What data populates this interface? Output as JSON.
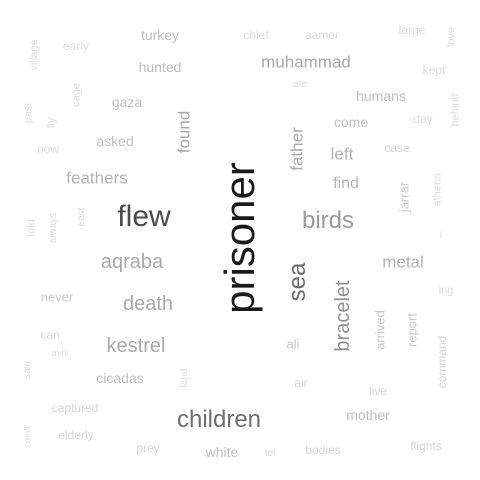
{
  "words": [
    {
      "id": "prisoner",
      "text": "prisoner",
      "color": "#1a1a1a"
    },
    {
      "id": "flew",
      "text": "flew",
      "color": "#4a4a4a"
    },
    {
      "id": "children",
      "text": "children",
      "color": "#6e6e6e"
    },
    {
      "id": "birds",
      "text": "birds",
      "color": "#9a9a9a"
    },
    {
      "id": "sea",
      "text": "sea",
      "color": "#6a6a6a"
    },
    {
      "id": "bracelet",
      "text": "bracelet",
      "color": "#909090"
    },
    {
      "id": "aqraba",
      "text": "aqraba",
      "color": "#a8a8a8"
    },
    {
      "id": "death",
      "text": "death",
      "color": "#a8a8a8"
    },
    {
      "id": "kestrel",
      "text": "kestrel",
      "color": "#a8a8a8"
    },
    {
      "id": "muhammad",
      "text": "muhammad",
      "color": "#a8a8a8"
    },
    {
      "id": "father",
      "text": "father",
      "color": "#a8a8a8"
    },
    {
      "id": "found",
      "text": "found",
      "color": "#a8a8a8"
    },
    {
      "id": "feathers",
      "text": "feathers",
      "color": "#b4b4b4"
    },
    {
      "id": "metal",
      "text": "metal",
      "color": "#b4b4b4"
    },
    {
      "id": "left",
      "text": "left",
      "color": "#b4b4b4"
    },
    {
      "id": "find",
      "text": "find",
      "color": "#b4b4b4"
    },
    {
      "id": "turkey",
      "text": "turkey",
      "color": "#bcbcbc"
    },
    {
      "id": "hunted",
      "text": "hunted",
      "color": "#bcbcbc"
    },
    {
      "id": "gaza",
      "text": "gaza",
      "color": "#c0c0c0"
    },
    {
      "id": "asked",
      "text": "asked",
      "color": "#c0c0c0"
    },
    {
      "id": "humans",
      "text": "humans",
      "color": "#c0c0c0"
    },
    {
      "id": "come",
      "text": "come",
      "color": "#c0c0c0"
    },
    {
      "id": "cicadas",
      "text": "cicadas",
      "color": "#c0c0c0"
    },
    {
      "id": "mother",
      "text": "mother",
      "color": "#c0c0c0"
    },
    {
      "id": "white",
      "text": "white",
      "color": "#c0c0c0"
    },
    {
      "id": "never",
      "text": "never",
      "color": "#c8c8c8"
    },
    {
      "id": "ali",
      "text": "ali",
      "color": "#c8c8c8"
    },
    {
      "id": "arrived",
      "text": "arrived",
      "color": "#c8c8c8"
    },
    {
      "id": "report",
      "text": "report",
      "color": "#c8c8c8"
    },
    {
      "id": "jarrar",
      "text": "jarrar",
      "color": "#cccccc"
    },
    {
      "id": "case",
      "text": "case",
      "color": "#d4d4d4"
    },
    {
      "id": "captured",
      "text": "captured",
      "color": "#d4d4d4"
    },
    {
      "id": "elderly",
      "text": "elderly",
      "color": "#d4d4d4"
    },
    {
      "id": "prey",
      "text": "prey",
      "color": "#d4d4d4"
    },
    {
      "id": "bodies",
      "text": "bodies",
      "color": "#d4d4d4"
    },
    {
      "id": "flights",
      "text": "flights",
      "color": "#d4d4d4"
    },
    {
      "id": "air",
      "text": "air",
      "color": "#d4d4d4"
    },
    {
      "id": "live",
      "text": "live",
      "color": "#d4d4d4"
    },
    {
      "id": "command",
      "text": "command",
      "color": "#d4d4d4"
    },
    {
      "id": "early",
      "text": "early",
      "color": "#dcdcdc"
    },
    {
      "id": "chief",
      "text": "chief",
      "color": "#dcdcdc"
    },
    {
      "id": "aamer",
      "text": "aamer",
      "color": "#dcdcdc"
    },
    {
      "id": "large",
      "text": "large",
      "color": "#dcdcdc"
    },
    {
      "id": "love",
      "text": "love",
      "color": "#dcdcdc"
    },
    {
      "id": "kept",
      "text": "kept",
      "color": "#dcdcdc"
    },
    {
      "id": "village",
      "text": "village",
      "color": "#dcdcdc"
    },
    {
      "id": "cage",
      "text": "cage",
      "color": "#dcdcdc"
    },
    {
      "id": "past",
      "text": "past",
      "color": "#dcdcdc"
    },
    {
      "id": "fly",
      "text": "fly",
      "color": "#dcdcdc"
    },
    {
      "id": "now",
      "text": "now",
      "color": "#dcdcdc"
    },
    {
      "id": "day",
      "text": "day",
      "color": "#dcdcdc"
    },
    {
      "id": "behind",
      "text": "behind",
      "color": "#dcdcdc"
    },
    {
      "id": "athens",
      "text": "athens",
      "color": "#dcdcdc"
    },
    {
      "id": "ate",
      "text": "ate",
      "color": "#dcdcdc"
    },
    {
      "id": "told",
      "text": "told",
      "color": "#dcdcdc"
    },
    {
      "id": "always",
      "text": "always",
      "color": "#dcdcdc"
    },
    {
      "id": "east",
      "text": "east",
      "color": "#dcdcdc"
    },
    {
      "id": "can",
      "text": "can",
      "color": "#dcdcdc"
    },
    {
      "id": "aviv",
      "text": "aviv",
      "color": "#dcdcdc"
    },
    {
      "id": "saw",
      "text": "saw",
      "color": "#dcdcdc"
    },
    {
      "id": "land",
      "text": "land",
      "color": "#dcdcdc"
    },
    {
      "id": "ing",
      "text": "ing",
      "color": "#dcdcdc"
    },
    {
      "id": "tel",
      "text": "tel",
      "color": "#dcdcdc"
    },
    {
      "id": "small",
      "text": "small",
      "color": "#dcdcdc"
    },
    {
      "id": "l",
      "text": "l",
      "color": "#dcdcdc"
    }
  ]
}
